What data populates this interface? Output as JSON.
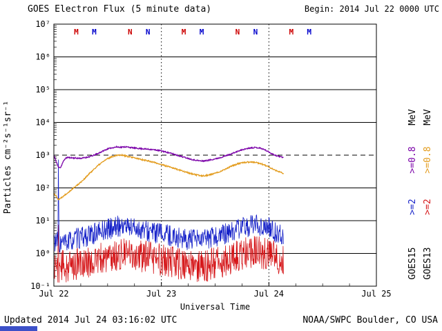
{
  "header": {
    "begin_label": "Begin: 2014 Jul 22 0000 UTC"
  },
  "footer": {
    "updated": "Updated 2014 Jul 24 03:16:02 UTC",
    "credit": "NOAA/SWPC Boulder, CO USA"
  },
  "artifact_bar": {
    "color": "#3c50c8"
  },
  "right_legend": {
    "columns": [
      {
        "satellite": "GOES15",
        "mev_label": "MeV",
        "e08_label": ">=0.8",
        "e2_label": ">=2",
        "e08_color": "#7a00a8",
        "e2_color": "#1420c8"
      },
      {
        "satellite": "GOES13",
        "mev_label": "MeV",
        "e08_label": ">=0.8",
        "e2_label": ">=2",
        "e08_color": "#e39c1e",
        "e2_color": "#d51518"
      }
    ]
  },
  "chart_data": {
    "type": "line",
    "title": "GOES Electron Flux (5 minute data)",
    "xlabel": "Universal Time",
    "ylabel": "Particles cm⁻²s⁻¹sr⁻¹",
    "x_unit": "hours since 2014 Jul 22 0000 UTC",
    "xlim_h": [
      0,
      72
    ],
    "ylog": true,
    "ylim_exp": [
      -1,
      7
    ],
    "dashed_threshold_exp": 3,
    "y_ticks": [
      {
        "exp": -1,
        "label": "10⁻¹"
      },
      {
        "exp": 0,
        "label": "10⁰"
      },
      {
        "exp": 1,
        "label": "10¹"
      },
      {
        "exp": 2,
        "label": "10²"
      },
      {
        "exp": 3,
        "label": "10³"
      },
      {
        "exp": 4,
        "label": "10⁴"
      },
      {
        "exp": 5,
        "label": "10⁵"
      },
      {
        "exp": 6,
        "label": "10⁶"
      },
      {
        "exp": 7,
        "label": "10⁷"
      }
    ],
    "x_ticks": [
      {
        "t": 0,
        "label": "Jul 22",
        "dotted": false
      },
      {
        "t": 24,
        "label": "Jul 23",
        "dotted": true
      },
      {
        "t": 48,
        "label": "Jul 24",
        "dotted": true
      },
      {
        "t": 72,
        "label": "Jul 25",
        "dotted": false
      }
    ],
    "x_minor_step_h": 6,
    "markers": [
      {
        "t": 5,
        "letter": "M",
        "color": "#cc0000",
        "satellite": "GOES13"
      },
      {
        "t": 9,
        "letter": "M",
        "color": "#0000cc",
        "satellite": "GOES15"
      },
      {
        "t": 17,
        "letter": "N",
        "color": "#cc0000",
        "satellite": "GOES13"
      },
      {
        "t": 21,
        "letter": "N",
        "color": "#0000cc",
        "satellite": "GOES15"
      },
      {
        "t": 29,
        "letter": "M",
        "color": "#cc0000",
        "satellite": "GOES13"
      },
      {
        "t": 33,
        "letter": "M",
        "color": "#0000cc",
        "satellite": "GOES15"
      },
      {
        "t": 41,
        "letter": "N",
        "color": "#cc0000",
        "satellite": "GOES13"
      },
      {
        "t": 45,
        "letter": "N",
        "color": "#0000cc",
        "satellite": "GOES15"
      },
      {
        "t": 53,
        "letter": "M",
        "color": "#cc0000",
        "satellite": "GOES13"
      },
      {
        "t": 57,
        "letter": "M",
        "color": "#0000cc",
        "satellite": "GOES15"
      }
    ],
    "series": [
      {
        "name": "GOES15 >=0.8 MeV",
        "color": "#7a00a8",
        "width": 1.3,
        "noise_dec": 0.018,
        "seed": 11,
        "t_end": 51.25,
        "trend": [
          [
            0,
            1000
          ],
          [
            0.5,
            650
          ],
          [
            1,
            430
          ],
          [
            1.5,
            420
          ],
          [
            2,
            600
          ],
          [
            2.5,
            780
          ],
          [
            3,
            850
          ],
          [
            4,
            830
          ],
          [
            5,
            810
          ],
          [
            6,
            800
          ],
          [
            7,
            840
          ],
          [
            8,
            900
          ],
          [
            9,
            1000
          ],
          [
            10,
            1150
          ],
          [
            11,
            1350
          ],
          [
            12,
            1550
          ],
          [
            13,
            1680
          ],
          [
            14,
            1780
          ],
          [
            15,
            1750
          ],
          [
            16,
            1800
          ],
          [
            17,
            1720
          ],
          [
            18,
            1650
          ],
          [
            19,
            1600
          ],
          [
            20,
            1560
          ],
          [
            21,
            1520
          ],
          [
            22,
            1480
          ],
          [
            23,
            1420
          ],
          [
            24,
            1350
          ],
          [
            25,
            1250
          ],
          [
            26,
            1150
          ],
          [
            27,
            1050
          ],
          [
            28,
            950
          ],
          [
            29,
            870
          ],
          [
            30,
            800
          ],
          [
            31,
            730
          ],
          [
            32,
            690
          ],
          [
            33,
            660
          ],
          [
            34,
            680
          ],
          [
            35,
            720
          ],
          [
            36,
            770
          ],
          [
            37,
            830
          ],
          [
            38,
            920
          ],
          [
            39,
            1020
          ],
          [
            40,
            1150
          ],
          [
            41,
            1300
          ],
          [
            42,
            1450
          ],
          [
            43,
            1580
          ],
          [
            44,
            1680
          ],
          [
            45,
            1720
          ],
          [
            46,
            1650
          ],
          [
            47,
            1480
          ],
          [
            48,
            1250
          ],
          [
            49,
            1050
          ],
          [
            50,
            930
          ],
          [
            51,
            870
          ],
          [
            51.25,
            860
          ]
        ]
      },
      {
        "name": "GOES13 >=0.8 MeV",
        "color": "#e39c1e",
        "width": 1.3,
        "noise_dec": 0.02,
        "seed": 22,
        "t_end": 51.25,
        "trend": [
          [
            0,
            70
          ],
          [
            0.5,
            55
          ],
          [
            1,
            45
          ],
          [
            1.5,
            48
          ],
          [
            2,
            55
          ],
          [
            3,
            70
          ],
          [
            4,
            90
          ],
          [
            5,
            115
          ],
          [
            6,
            150
          ],
          [
            7,
            200
          ],
          [
            8,
            280
          ],
          [
            9,
            380
          ],
          [
            10,
            500
          ],
          [
            11,
            640
          ],
          [
            12,
            780
          ],
          [
            13,
            900
          ],
          [
            14,
            1000
          ],
          [
            15,
            1020
          ],
          [
            16,
            950
          ],
          [
            17,
            880
          ],
          [
            18,
            820
          ],
          [
            19,
            770
          ],
          [
            20,
            720
          ],
          [
            21,
            670
          ],
          [
            22,
            620
          ],
          [
            23,
            570
          ],
          [
            24,
            520
          ],
          [
            25,
            470
          ],
          [
            26,
            430
          ],
          [
            27,
            390
          ],
          [
            28,
            350
          ],
          [
            29,
            320
          ],
          [
            30,
            290
          ],
          [
            31,
            265
          ],
          [
            32,
            245
          ],
          [
            33,
            235
          ],
          [
            34,
            240
          ],
          [
            35,
            255
          ],
          [
            36,
            280
          ],
          [
            37,
            315
          ],
          [
            38,
            360
          ],
          [
            39,
            420
          ],
          [
            40,
            480
          ],
          [
            41,
            540
          ],
          [
            42,
            580
          ],
          [
            43,
            610
          ],
          [
            44,
            620
          ],
          [
            45,
            600
          ],
          [
            46,
            560
          ],
          [
            47,
            500
          ],
          [
            48,
            430
          ],
          [
            49,
            370
          ],
          [
            50,
            320
          ],
          [
            51,
            285
          ],
          [
            51.25,
            280
          ]
        ]
      },
      {
        "name": "GOES15 >=2 MeV",
        "color": "#1420c8",
        "width": 0.8,
        "noise_dec": 0.33,
        "seed": 33,
        "t_end": 51.25,
        "trend": [
          [
            0,
            2.5
          ],
          [
            0.9,
            2.2
          ],
          [
            1.0,
            450
          ],
          [
            1.15,
            2.0
          ],
          [
            2,
            2.0
          ],
          [
            3,
            2.2
          ],
          [
            4,
            2.5
          ],
          [
            5,
            2.8
          ],
          [
            6,
            3.0
          ],
          [
            8,
            3.5
          ],
          [
            10,
            4.5
          ],
          [
            12,
            5.5
          ],
          [
            14,
            6.5
          ],
          [
            15,
            7
          ],
          [
            16,
            7
          ],
          [
            18,
            6
          ],
          [
            20,
            5
          ],
          [
            22,
            4.5
          ],
          [
            24,
            4
          ],
          [
            26,
            3.5
          ],
          [
            28,
            3
          ],
          [
            30,
            2.6
          ],
          [
            32,
            2.5
          ],
          [
            34,
            2.8
          ],
          [
            36,
            3.2
          ],
          [
            38,
            3.8
          ],
          [
            40,
            4.8
          ],
          [
            42,
            6
          ],
          [
            44,
            7
          ],
          [
            45,
            7.5
          ],
          [
            46,
            7
          ],
          [
            47,
            6.5
          ],
          [
            48,
            6
          ],
          [
            49,
            5
          ],
          [
            50,
            4
          ],
          [
            51.25,
            3.5
          ]
        ]
      },
      {
        "name": "GOES13 >=2 MeV",
        "color": "#d51518",
        "width": 0.8,
        "noise_dec": 0.5,
        "seed": 44,
        "t_end": 51.25,
        "trend": [
          [
            0,
            0.45
          ],
          [
            0.9,
            0.4
          ],
          [
            1.0,
            3.5
          ],
          [
            1.15,
            0.4
          ],
          [
            2,
            0.4
          ],
          [
            4,
            0.42
          ],
          [
            6,
            0.5
          ],
          [
            8,
            0.55
          ],
          [
            10,
            0.65
          ],
          [
            12,
            0.75
          ],
          [
            14,
            0.85
          ],
          [
            16,
            0.95
          ],
          [
            18,
            0.9
          ],
          [
            20,
            0.8
          ],
          [
            22,
            0.72
          ],
          [
            24,
            0.65
          ],
          [
            26,
            0.55
          ],
          [
            28,
            0.48
          ],
          [
            30,
            0.42
          ],
          [
            32,
            0.38
          ],
          [
            34,
            0.42
          ],
          [
            36,
            0.5
          ],
          [
            38,
            0.6
          ],
          [
            40,
            0.75
          ],
          [
            42,
            0.95
          ],
          [
            44,
            1.1
          ],
          [
            45,
            1.15
          ],
          [
            46,
            1.1
          ],
          [
            47,
            1.0
          ],
          [
            48,
            0.95
          ],
          [
            49,
            0.85
          ],
          [
            50,
            0.75
          ],
          [
            51.25,
            0.7
          ]
        ]
      }
    ]
  }
}
